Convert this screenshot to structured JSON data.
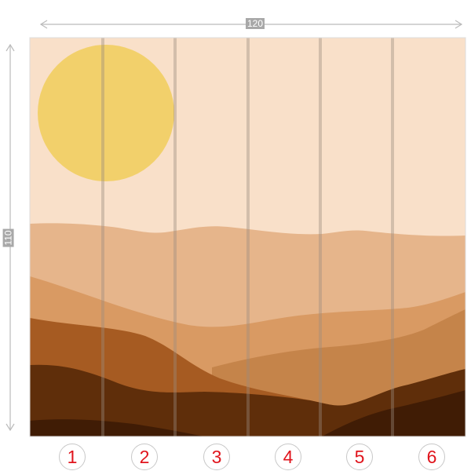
{
  "dimensions": {
    "width_label": "120",
    "height_label": "110"
  },
  "panels": [
    {
      "number": "1"
    },
    {
      "number": "2"
    },
    {
      "number": "3"
    },
    {
      "number": "4"
    },
    {
      "number": "5"
    },
    {
      "number": "6"
    }
  ],
  "colors": {
    "sky": "#f9e0c9",
    "sun": "#f2d06b",
    "dune_1": "#e6b58b",
    "dune_2": "#d99a63",
    "dune_3": "#c5844a",
    "dune_4": "#a65b22",
    "dune_5": "#5f2e0a",
    "dune_6": "#401c05",
    "panel_number": "#e0141c"
  }
}
